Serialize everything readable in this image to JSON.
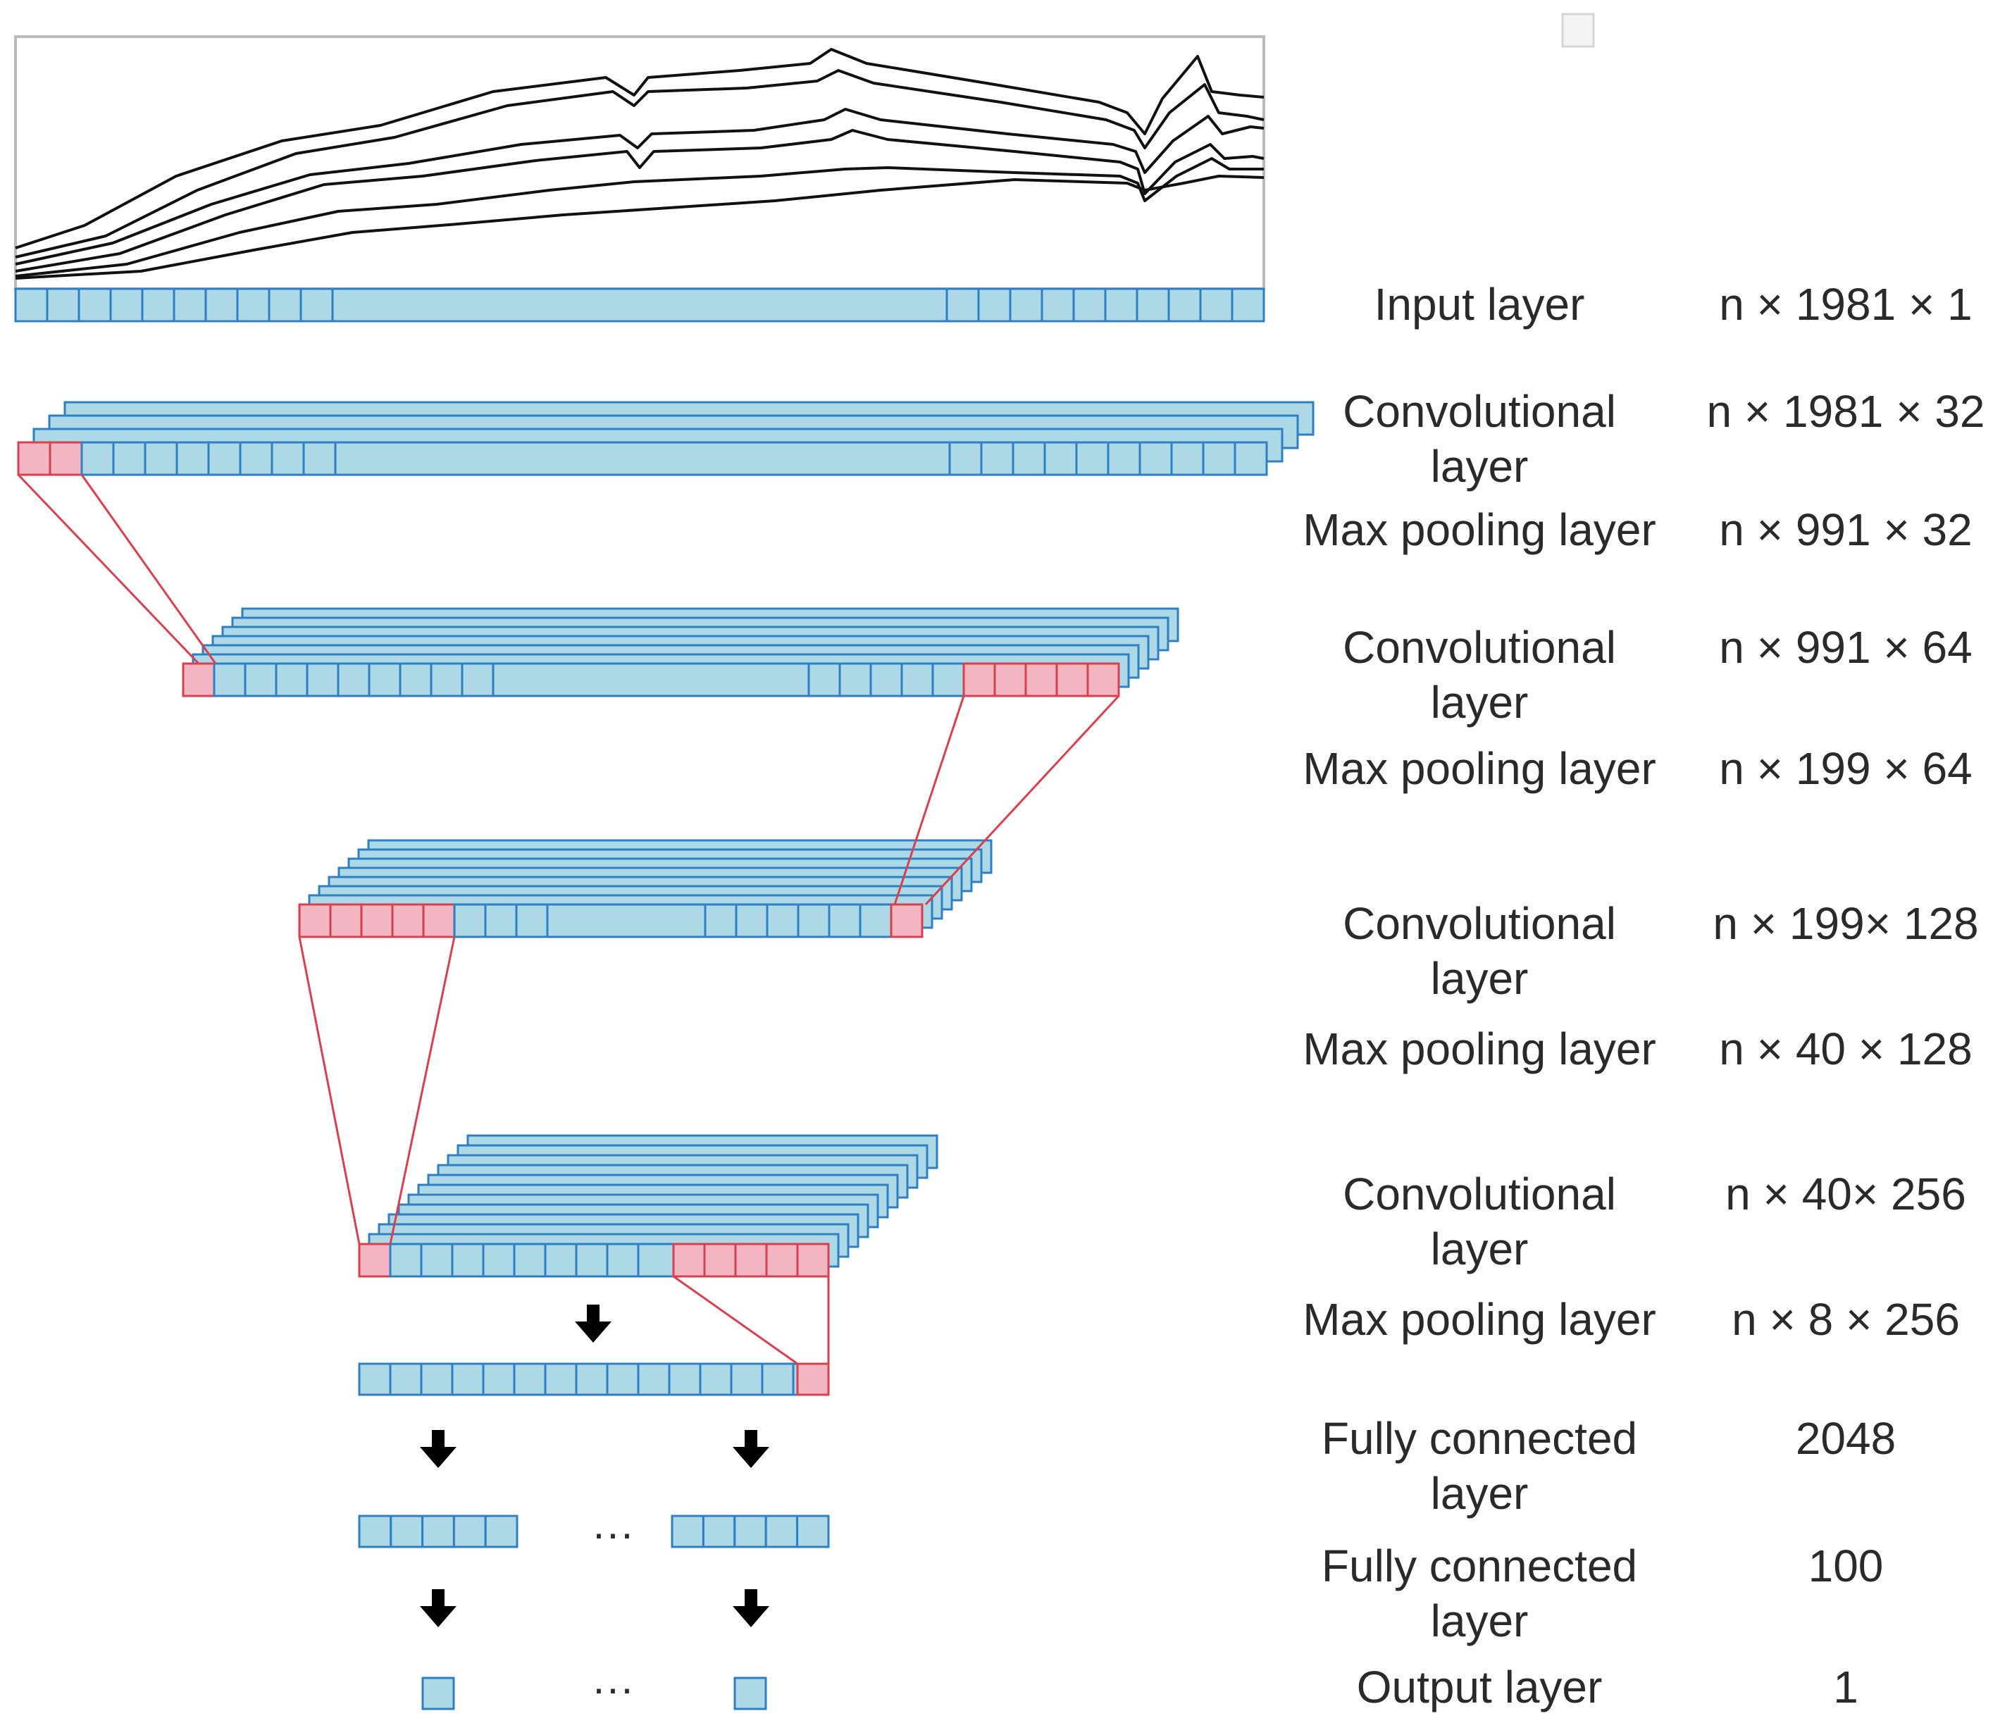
{
  "colors": {
    "cell_fill": "#add8e6",
    "cell_stroke": "#2f7fc4",
    "kernel_fill": "#f4b6c2",
    "kernel_stroke": "#d9404f",
    "arrow": "#000000",
    "spectrum_line": "#111111",
    "frame": "#bbbbbb"
  },
  "layers": [
    {
      "name": "Input layer",
      "dims": "n × 1981 × 1"
    },
    {
      "name": "Convolutional layer",
      "dims": "n × 1981 × 32"
    },
    {
      "name": "Max pooling layer",
      "dims": "n × 991 × 32"
    },
    {
      "name": "Convolutional layer",
      "dims": "n × 991 × 64"
    },
    {
      "name": "Max pooling layer",
      "dims": "n × 199 × 64"
    },
    {
      "name": "Convolutional layer",
      "dims": "n × 199× 128"
    },
    {
      "name": "Max pooling layer",
      "dims": "n × 40 × 128"
    },
    {
      "name": "Convolutional layer",
      "dims": "n × 40× 256"
    },
    {
      "name": "Max pooling layer",
      "dims": "n × 8 × 256"
    },
    {
      "name": "Fully connected layer",
      "dims": "2048"
    },
    {
      "name": "Fully connected layer",
      "dims": "100"
    },
    {
      "name": "Output layer",
      "dims": "1"
    }
  ],
  "ellipsis": "···"
}
